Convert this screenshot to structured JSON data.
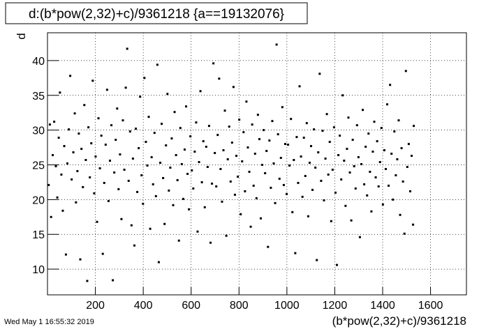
{
  "chart_data": {
    "type": "scatter",
    "title": "d:(b*pow(2,32)+c)/9361218 {a==19132076}",
    "x_label": "(b*pow(2,32)+c)/9361218",
    "y_label": "d",
    "timestamp": "Wed May  1 16:55:32 2019",
    "color": "#000000",
    "grid": true,
    "xlim": [
      0,
      1750
    ],
    "ylim": [
      6.3,
      44
    ],
    "xticks": [
      200,
      400,
      600,
      800,
      1000,
      1200,
      1400,
      1600
    ],
    "yticks": [
      10,
      15,
      20,
      25,
      30,
      35,
      40
    ],
    "x": [
      5,
      10,
      15,
      22,
      28,
      35,
      41,
      47,
      52,
      58,
      64,
      70,
      77,
      83,
      89,
      95,
      101,
      108,
      114,
      119,
      125,
      131,
      137,
      142,
      148,
      154,
      160,
      166,
      171,
      177,
      183,
      189,
      195,
      201,
      207,
      213,
      219,
      225,
      231,
      237,
      243,
      249,
      255,
      261,
      267,
      273,
      279,
      285,
      291,
      297,
      303,
      309,
      315,
      321,
      327,
      333,
      339,
      345,
      351,
      357,
      363,
      369,
      375,
      381,
      387,
      393,
      399,
      405,
      411,
      417,
      423,
      429,
      435,
      441,
      447,
      453,
      459,
      465,
      471,
      477,
      483,
      489,
      495,
      501,
      507,
      513,
      519,
      525,
      531,
      537,
      543,
      549,
      555,
      561,
      567,
      573,
      579,
      585,
      591,
      597,
      603,
      609,
      615,
      621,
      627,
      633,
      639,
      645,
      651,
      657,
      663,
      669,
      675,
      681,
      687,
      693,
      699,
      705,
      711,
      717,
      723,
      729,
      735,
      741,
      747,
      753,
      759,
      765,
      771,
      777,
      783,
      789,
      795,
      801,
      807,
      813,
      819,
      825,
      831,
      837,
      843,
      849,
      855,
      861,
      867,
      873,
      879,
      885,
      891,
      897,
      903,
      909,
      915,
      921,
      927,
      933,
      939,
      945,
      951,
      957,
      963,
      969,
      975,
      981,
      987,
      993,
      999,
      1005,
      1011,
      1017,
      1023,
      1029,
      1035,
      1041,
      1047,
      1053,
      1059,
      1065,
      1071,
      1077,
      1083,
      1089,
      1095,
      1101,
      1107,
      1113,
      1119,
      1125,
      1131,
      1137,
      1143,
      1149,
      1155,
      1161,
      1167,
      1173,
      1179,
      1185,
      1191,
      1197,
      1203,
      1209,
      1215,
      1221,
      1227,
      1233,
      1239,
      1245,
      1251,
      1257,
      1263,
      1269,
      1275,
      1281,
      1287,
      1293,
      1299,
      1305,
      1311,
      1317,
      1323,
      1329,
      1335,
      1341,
      1347,
      1353,
      1359,
      1365,
      1371,
      1377,
      1383,
      1389,
      1395,
      1401,
      1407,
      1413,
      1419,
      1425,
      1431,
      1437,
      1443,
      1449,
      1455,
      1461,
      1467,
      1473,
      1479,
      1485,
      1491,
      1497,
      1503,
      1509,
      1515,
      1521,
      1527,
      1530
    ],
    "values": [
      22.1,
      30.8,
      17.5,
      26.4,
      31.2,
      24.8,
      20.3,
      28.9,
      35.4,
      23.6,
      18.4,
      27.7,
      12.1,
      25.2,
      30.1,
      37.8,
      22.9,
      26.8,
      32.4,
      19.6,
      24.1,
      29.5,
      11.4,
      27.3,
      21.8,
      33.6,
      25.7,
      8.3,
      30.4,
      23.2,
      28.1,
      37.1,
      20.9,
      26.2,
      16.8,
      31.7,
      24.5,
      29.2,
      12.2,
      22.4,
      27.9,
      35.8,
      19.8,
      25.6,
      30.7,
      8.4,
      23.9,
      28.6,
      33.1,
      21.5,
      26.5,
      17.2,
      31.4,
      24.3,
      36.1,
      41.7,
      22.7,
      29.8,
      16.3,
      25.9,
      13.4,
      30.2,
      21.1,
      27.4,
      34.8,
      23.5,
      19.4,
      37.5,
      28.3,
      24.9,
      31.9,
      15.8,
      26.1,
      22.2,
      29.6,
      20.5,
      39.4,
      11.0,
      25.3,
      30.9,
      23.1,
      16.5,
      27.8,
      35.2,
      21.3,
      24.6,
      28.8,
      19.2,
      32.6,
      26.4,
      22.8,
      14.1,
      30.3,
      25.1,
      20.1,
      27.2,
      33.4,
      23.7,
      18.6,
      29.1,
      24.2,
      21.6,
      26.9,
      31.1,
      15.4,
      25.4,
      35.6,
      22.5,
      28.4,
      18.9,
      27.6,
      24.7,
      30.6,
      13.8,
      22.3,
      39.6,
      26.7,
      21.9,
      29.3,
      37.4,
      24.4,
      19.7,
      27.1,
      32.8,
      14.8,
      25.8,
      30.5,
      22.6,
      28.2,
      36.2,
      20.7,
      26.3,
      23.3,
      31.5,
      17.9,
      25.5,
      29.7,
      21.2,
      34.1,
      27.5,
      24.0,
      16.1,
      30.8,
      22.0,
      26.6,
      20.2,
      32.2,
      28.7,
      17.3,
      25.0,
      30.0,
      23.8,
      27.0,
      13.2,
      28.5,
      21.7,
      31.3,
      25.2,
      19.5,
      42.3,
      29.4,
      23.0,
      26.0,
      33.3,
      22.1,
      28.0,
      20.8,
      27.9,
      24.9,
      31.6,
      18.2,
      25.7,
      12.3,
      29.0,
      22.4,
      36.3,
      26.2,
      20.4,
      28.9,
      23.4,
      31.0,
      17.6,
      25.3,
      27.7,
      21.4,
      30.1,
      24.6,
      11.3,
      26.8,
      38.1,
      22.7,
      29.9,
      19.9,
      25.9,
      32.3,
      23.6,
      28.3,
      16.9,
      24.3,
      30.4,
      21.0,
      10.6,
      26.4,
      29.2,
      22.9,
      35.0,
      25.6,
      19.1,
      27.3,
      31.8,
      23.9,
      17.0,
      28.6,
      24.8,
      21.6,
      30.7,
      26.1,
      14.6,
      25.1,
      32.9,
      22.2,
      27.6,
      20.6,
      29.5,
      24.0,
      18.3,
      26.9,
      31.2,
      23.2,
      28.4,
      21.9,
      25.4,
      30.3,
      19.3,
      27.1,
      24.4,
      33.7,
      22.0,
      36.5,
      26.6,
      20.0,
      29.8,
      23.5,
      25.8,
      31.4,
      17.8,
      27.4,
      22.6,
      15.1,
      38.5,
      24.7,
      28.0,
      21.2,
      26.3,
      16.4,
      30.6
    ]
  }
}
